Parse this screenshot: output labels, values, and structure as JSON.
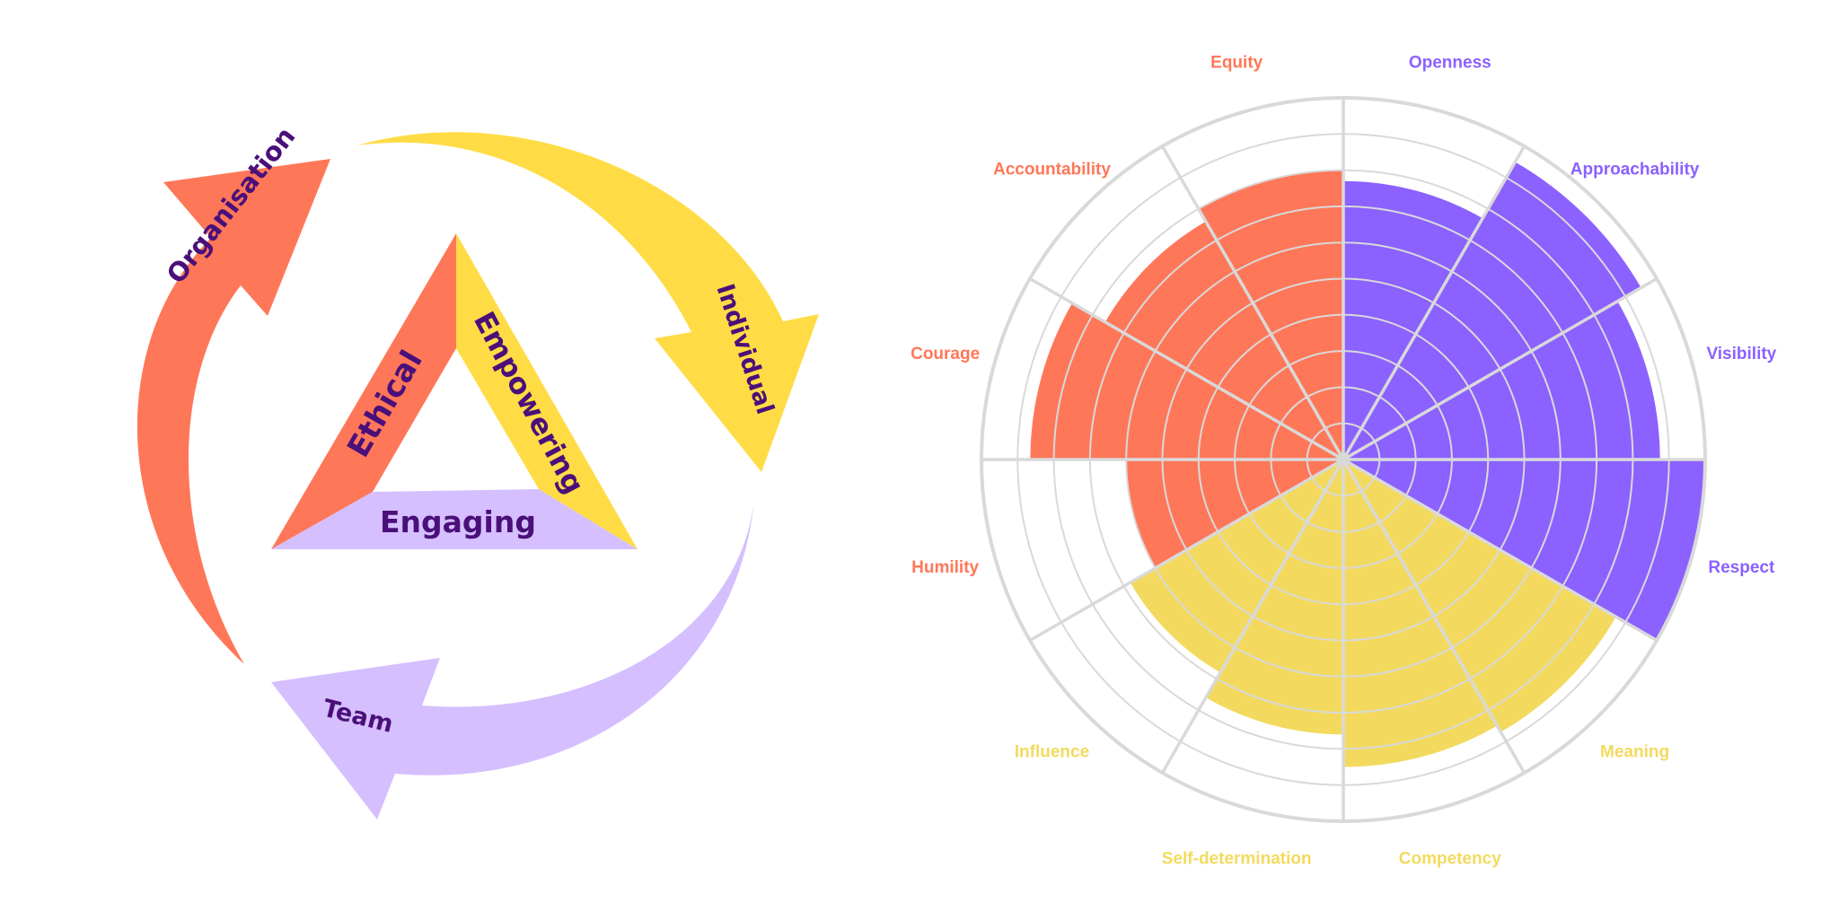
{
  "cycle_diagram": {
    "colors": {
      "orange": "#FF7759",
      "yellow": "#FFDC45",
      "lavender": "#D5BFFF",
      "text": "#4B0F7A"
    },
    "outer_arrows": [
      {
        "label": "Organisation",
        "color": "orange"
      },
      {
        "label": "Individual",
        "color": "yellow"
      },
      {
        "label": "Team",
        "color": "lavender"
      }
    ],
    "triangle_sides": [
      {
        "label": "Ethical",
        "color": "orange"
      },
      {
        "label": "Empowering",
        "color": "yellow"
      },
      {
        "label": "Engaging",
        "color": "lavender"
      }
    ]
  },
  "chart_data": {
    "type": "polar_area",
    "title": "",
    "rmax": 10,
    "rings": 10,
    "grid": true,
    "direction": "clockwise",
    "start": "top",
    "grid_color": "#D9D9D9",
    "groups": [
      {
        "name": "Purple group",
        "color": "#8B61FF"
      },
      {
        "name": "Yellow group",
        "color": "#F3DA5E"
      },
      {
        "name": "Orange group",
        "color": "#FF7759"
      }
    ],
    "categories": [
      "Openness",
      "Approachability",
      "Visibility",
      "Respect",
      "Meaning",
      "Competency",
      "Self-determination",
      "Influence",
      "Humility",
      "Courage",
      "Accountability",
      "Equity"
    ],
    "values": [
      7.7,
      9.5,
      8.75,
      10,
      8.7,
      8.5,
      7.6,
      6.8,
      6.0,
      8.65,
      7.6,
      8.0
    ],
    "colors": [
      "#8B61FF",
      "#8B61FF",
      "#8B61FF",
      "#8B61FF",
      "#F3DA5E",
      "#F3DA5E",
      "#F3DA5E",
      "#F3DA5E",
      "#FF7759",
      "#FF7759",
      "#FF7759",
      "#FF7759"
    ],
    "label_colors": [
      "#8B61FF",
      "#8B61FF",
      "#8B61FF",
      "#8B61FF",
      "#F3DA5E",
      "#F3DA5E",
      "#F3DA5E",
      "#F3DA5E",
      "#FF7759",
      "#FF7759",
      "#FF7759",
      "#FF7759"
    ]
  }
}
